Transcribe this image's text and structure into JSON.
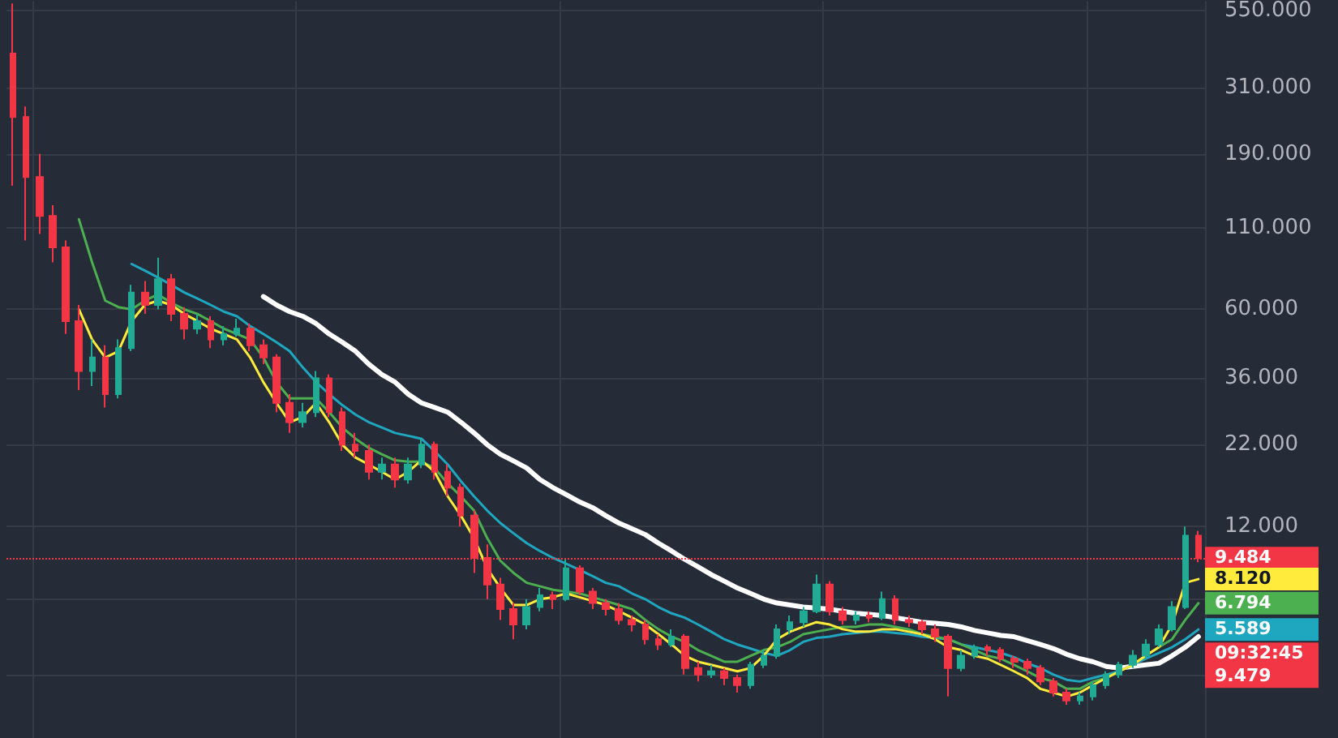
{
  "chart_data": {
    "type": "candlestick",
    "log": true,
    "grid": true,
    "tick_labels": "y",
    "ylim": [
      2.5,
      590
    ],
    "yticks": [
      {
        "value": 4,
        "label": null
      },
      {
        "value": 7,
        "label": null
      },
      {
        "value": 12,
        "label": "12.000"
      },
      {
        "value": 22,
        "label": "22.000"
      },
      {
        "value": 36,
        "label": "36.000"
      },
      {
        "value": 60,
        "label": "60.000"
      },
      {
        "value": 110,
        "label": "110.000"
      },
      {
        "value": 190,
        "label": "190.000"
      },
      {
        "value": 310,
        "label": "310.000"
      },
      {
        "value": 550,
        "label": "550.000"
      }
    ],
    "categories": [
      null,
      null,
      null,
      null,
      null,
      null,
      null,
      null,
      null,
      null,
      null,
      null,
      null,
      null,
      null,
      null,
      null,
      null,
      null,
      null,
      null,
      null,
      null,
      null,
      null,
      null,
      null,
      null,
      null,
      null,
      null,
      null,
      null,
      null,
      null,
      null,
      null,
      null,
      null,
      null,
      null,
      null,
      null,
      null,
      null,
      null,
      null,
      null,
      null,
      null,
      null,
      null,
      null,
      null,
      null,
      null,
      null,
      null,
      null,
      null,
      null,
      null,
      null,
      null,
      null,
      null,
      null,
      null,
      null,
      null,
      null,
      null,
      null,
      null,
      null,
      null,
      null,
      null,
      null,
      null,
      null,
      null,
      null,
      null,
      null,
      null,
      null,
      null,
      null,
      null,
      null
    ],
    "ohlc": [
      [
        400,
        580,
        150,
        250
      ],
      [
        250,
        270,
        100,
        160
      ],
      [
        160,
        190,
        105,
        120
      ],
      [
        120,
        130,
        85,
        95
      ],
      [
        95,
        100,
        50,
        55
      ],
      [
        55,
        62,
        33,
        38
      ],
      [
        38,
        48,
        34,
        42
      ],
      [
        42,
        46,
        29,
        32
      ],
      [
        32,
        48,
        31,
        45
      ],
      [
        45,
        72,
        44,
        68
      ],
      [
        68,
        74,
        58,
        62
      ],
      [
        62,
        88,
        60,
        75
      ],
      [
        75,
        78,
        55,
        58
      ],
      [
        58,
        61,
        48,
        52
      ],
      [
        52,
        58,
        50,
        55
      ],
      [
        55,
        57,
        45,
        48
      ],
      [
        48,
        53,
        46,
        50
      ],
      [
        50,
        56,
        49,
        52
      ],
      [
        52,
        54,
        44,
        46
      ],
      [
        46,
        48,
        40,
        42
      ],
      [
        42,
        43,
        28,
        30
      ],
      [
        30,
        32,
        24,
        26
      ],
      [
        26,
        30,
        25,
        28
      ],
      [
        28,
        38,
        27,
        36
      ],
      [
        36,
        37,
        27,
        28
      ],
      [
        28,
        29,
        21,
        22
      ],
      [
        22,
        24,
        20,
        21
      ],
      [
        21,
        22,
        17,
        18
      ],
      [
        18,
        20,
        17,
        19
      ],
      [
        19,
        20,
        16,
        17
      ],
      [
        17,
        20,
        16.5,
        19
      ],
      [
        19,
        23,
        18.5,
        22
      ],
      [
        22,
        22.5,
        17,
        18
      ],
      [
        18,
        19,
        15,
        16
      ],
      [
        16,
        16.5,
        12,
        13
      ],
      [
        13,
        13.5,
        8.5,
        9.5
      ],
      [
        9.5,
        10.5,
        7,
        7.8
      ],
      [
        7.8,
        8.2,
        6,
        6.5
      ],
      [
        6.5,
        6.8,
        5.2,
        5.8
      ],
      [
        5.8,
        7,
        5.6,
        6.6
      ],
      [
        6.6,
        7.6,
        6.4,
        7.2
      ],
      [
        7.2,
        7.4,
        6.5,
        7
      ],
      [
        7,
        9.4,
        6.9,
        8.8
      ],
      [
        8.8,
        9,
        7.2,
        7.4
      ],
      [
        7.4,
        7.6,
        6.5,
        6.8
      ],
      [
        6.8,
        7,
        6.2,
        6.5
      ],
      [
        6.5,
        6.8,
        5.8,
        6
      ],
      [
        6,
        6.2,
        5.5,
        5.8
      ],
      [
        5.8,
        6,
        5,
        5.2
      ],
      [
        5.2,
        5.4,
        4.8,
        5
      ],
      [
        5,
        5.6,
        4.9,
        5.3
      ],
      [
        5.3,
        5.4,
        4,
        4.2
      ],
      [
        4.2,
        4.4,
        3.8,
        4
      ],
      [
        4,
        4.3,
        3.9,
        4.1
      ],
      [
        4.1,
        4.2,
        3.7,
        3.9
      ],
      [
        3.9,
        4,
        3.5,
        3.7
      ],
      [
        3.7,
        4.4,
        3.6,
        4.3
      ],
      [
        4.3,
        4.8,
        4.2,
        4.6
      ],
      [
        4.6,
        5.8,
        4.5,
        5.6
      ],
      [
        5.6,
        6.2,
        5.4,
        5.9
      ],
      [
        5.9,
        6.6,
        5.7,
        6.4
      ],
      [
        6.4,
        8.4,
        6.3,
        7.8
      ],
      [
        7.8,
        8,
        6.2,
        6.4
      ],
      [
        6.4,
        6.6,
        5.8,
        6
      ],
      [
        6,
        6.4,
        5.8,
        6.2
      ],
      [
        6.2,
        6.4,
        5.9,
        6.1
      ],
      [
        6.1,
        7.4,
        6,
        7
      ],
      [
        7,
        7.2,
        5.8,
        6
      ],
      [
        6,
        6.2,
        5.7,
        5.9
      ],
      [
        5.9,
        6,
        5.4,
        5.6
      ],
      [
        5.6,
        5.8,
        5.1,
        5.3
      ],
      [
        5.3,
        5.4,
        3.4,
        4.2
      ],
      [
        4.2,
        4.8,
        4.1,
        4.6
      ],
      [
        4.6,
        5,
        4.5,
        4.9
      ],
      [
        4.9,
        5,
        4.6,
        4.8
      ],
      [
        4.8,
        4.9,
        4.4,
        4.5
      ],
      [
        4.5,
        4.6,
        4.2,
        4.4
      ],
      [
        4.4,
        4.5,
        4,
        4.2
      ],
      [
        4.2,
        4.3,
        3.7,
        3.8
      ],
      [
        3.8,
        3.9,
        3.4,
        3.5
      ],
      [
        3.5,
        3.6,
        3.2,
        3.3
      ],
      [
        3.3,
        3.5,
        3.2,
        3.4
      ],
      [
        3.4,
        3.8,
        3.3,
        3.7
      ],
      [
        3.7,
        4.1,
        3.6,
        4
      ],
      [
        4,
        4.4,
        3.9,
        4.3
      ],
      [
        4.3,
        4.8,
        4.2,
        4.6
      ],
      [
        4.6,
        5.2,
        4.5,
        5
      ],
      [
        5,
        5.8,
        4.9,
        5.6
      ],
      [
        5.6,
        6.9,
        5.5,
        6.6
      ],
      [
        6.6,
        12,
        6.5,
        11.2
      ],
      [
        11.2,
        11.6,
        9.2,
        9.484
      ]
    ],
    "colors": [
      "#f23645",
      "#f23645",
      "#f23645",
      "#f23645",
      "#f23645",
      "#f23645",
      "#22ab94",
      "#f23645",
      "#22ab94",
      "#22ab94",
      "#f23645",
      "#22ab94",
      "#f23645",
      "#f23645",
      "#22ab94",
      "#f23645",
      "#22ab94",
      "#22ab94",
      "#f23645",
      "#f23645",
      "#f23645",
      "#f23645",
      "#22ab94",
      "#22ab94",
      "#f23645",
      "#f23645",
      "#f23645",
      "#f23645",
      "#22ab94",
      "#f23645",
      "#22ab94",
      "#22ab94",
      "#f23645",
      "#f23645",
      "#f23645",
      "#f23645",
      "#f23645",
      "#f23645",
      "#f23645",
      "#22ab94",
      "#22ab94",
      "#f23645",
      "#22ab94",
      "#f23645",
      "#f23645",
      "#f23645",
      "#f23645",
      "#f23645",
      "#f23645",
      "#f23645",
      "#22ab94",
      "#f23645",
      "#f23645",
      "#22ab94",
      "#f23645",
      "#f23645",
      "#22ab94",
      "#22ab94",
      "#22ab94",
      "#22ab94",
      "#22ab94",
      "#22ab94",
      "#f23645",
      "#f23645",
      "#22ab94",
      "#f23645",
      "#22ab94",
      "#f23645",
      "#f23645",
      "#f23645",
      "#f23645",
      "#f23645",
      "#22ab94",
      "#22ab94",
      "#f23645",
      "#f23645",
      "#f23645",
      "#f23645",
      "#f23645",
      "#f23645",
      "#f23645",
      "#22ab94",
      "#22ab94",
      "#22ab94",
      "#22ab94",
      "#22ab94",
      "#22ab94",
      "#22ab94",
      "#22ab94",
      "#22ab94",
      "#f23645"
    ],
    "series": [
      {
        "type": "line",
        "color": "#ffffff",
        "values": [
          null,
          null,
          null,
          null,
          null,
          null,
          null,
          null,
          null,
          null,
          null,
          null,
          null,
          null,
          null,
          null,
          null,
          null,
          null,
          66,
          62,
          59,
          57,
          54,
          50,
          47,
          44,
          40,
          37,
          35,
          32,
          30,
          29,
          28,
          26,
          24,
          22,
          20.5,
          19.5,
          18.5,
          17,
          16,
          15.2,
          14.4,
          13.8,
          13,
          12.3,
          11.8,
          11.3,
          10.6,
          10,
          9.4,
          8.9,
          8.4,
          8,
          7.6,
          7.3,
          7,
          6.8,
          6.7,
          6.6,
          6.55,
          6.5,
          6.4,
          6.3,
          6.25,
          6.2,
          6.1,
          6,
          5.9,
          5.85,
          5.8,
          5.7,
          5.55,
          5.45,
          5.35,
          5.3,
          5.15,
          5,
          4.85,
          4.65,
          4.5,
          4.4,
          4.25,
          4.2,
          4.25,
          4.3,
          4.35,
          4.6,
          4.9,
          5.3
        ]
      },
      {
        "type": "line",
        "color": "#1fa7c0",
        "values": [
          null,
          null,
          null,
          null,
          null,
          null,
          null,
          null,
          null,
          84,
          80,
          76,
          72,
          68,
          65,
          62,
          59,
          57,
          53,
          50,
          47,
          44,
          39,
          35,
          32,
          29.5,
          27.5,
          26,
          25,
          24,
          23.5,
          23,
          21,
          19,
          16.8,
          15,
          13.5,
          12.3,
          11.4,
          10.6,
          10,
          9.5,
          9.1,
          8.7,
          8.3,
          7.9,
          7.7,
          7.3,
          7,
          6.6,
          6.3,
          6.1,
          5.8,
          5.5,
          5.2,
          5,
          4.85,
          4.7,
          4.6,
          4.8,
          5.1,
          5.25,
          5.3,
          5.4,
          5.45,
          5.5,
          5.5,
          5.45,
          5.4,
          5.3,
          5.25,
          5.2,
          5,
          4.9,
          4.8,
          4.7,
          4.55,
          4.35,
          4.2,
          4,
          3.85,
          3.8,
          3.9,
          4,
          4.1,
          4.3,
          4.5,
          4.7,
          4.9,
          5.2,
          5.589
        ],
        "value_labels": [
          null,
          null,
          null,
          null,
          null,
          null,
          null,
          null,
          null,
          null,
          null,
          null,
          null,
          null,
          null,
          null,
          null,
          null,
          null,
          null,
          null,
          null,
          null,
          null,
          null,
          null,
          null,
          null,
          null,
          null,
          null,
          null,
          null,
          null,
          null,
          null,
          null,
          null,
          null,
          null,
          null,
          null,
          null,
          null,
          null,
          null,
          null,
          null,
          null,
          null,
          null,
          null,
          null,
          null,
          null,
          null,
          null,
          null,
          null,
          null,
          null,
          null,
          null,
          null,
          null,
          null,
          null,
          null,
          null,
          null,
          null,
          null,
          null,
          null,
          null,
          null,
          null,
          null,
          null,
          null,
          null,
          null,
          null,
          null,
          null,
          null,
          null,
          null,
          null,
          null,
          "5.589"
        ]
      },
      {
        "type": "line",
        "color": "#4caf50",
        "values": [
          null,
          null,
          null,
          null,
          null,
          117,
          85,
          64,
          61,
          60,
          64,
          67,
          63,
          60,
          58,
          55,
          52,
          50,
          48,
          42,
          35,
          31,
          31,
          31,
          28,
          25,
          23,
          21.5,
          20.5,
          19.6,
          19.4,
          19.4,
          18.5,
          16.5,
          15,
          13.5,
          11,
          9.3,
          8.5,
          7.9,
          7.7,
          7.5,
          7.4,
          7.3,
          7.1,
          6.9,
          6.7,
          6.5,
          6,
          5.6,
          5.3,
          5.1,
          4.8,
          4.6,
          4.4,
          4.4,
          4.6,
          4.8,
          4.9,
          5.1,
          5.4,
          5.5,
          5.6,
          5.7,
          5.7,
          5.8,
          5.8,
          5.7,
          5.6,
          5.4,
          5.3,
          5.2,
          5,
          4.8,
          4.6,
          4.5,
          4.3,
          4.1,
          3.9,
          3.8,
          3.6,
          3.6,
          3.8,
          3.9,
          4.1,
          4.3,
          4.6,
          4.9,
          5.2,
          6,
          6.794
        ],
        "value_labels": [
          null,
          null,
          null,
          null,
          null,
          null,
          null,
          null,
          null,
          null,
          null,
          null,
          null,
          null,
          null,
          null,
          null,
          null,
          null,
          null,
          null,
          null,
          null,
          null,
          null,
          null,
          null,
          null,
          null,
          null,
          null,
          null,
          null,
          null,
          null,
          null,
          null,
          null,
          null,
          null,
          null,
          null,
          null,
          null,
          null,
          null,
          null,
          null,
          null,
          null,
          null,
          null,
          null,
          null,
          null,
          null,
          null,
          null,
          null,
          null,
          null,
          null,
          null,
          null,
          null,
          null,
          null,
          null,
          null,
          null,
          null,
          null,
          null,
          null,
          null,
          null,
          null,
          null,
          null,
          null,
          null,
          null,
          null,
          null,
          null,
          null,
          null,
          null,
          null,
          null,
          "6.794"
        ]
      },
      {
        "type": "line",
        "color": "#ffeb3b",
        "values": [
          null,
          null,
          null,
          null,
          null,
          60,
          48,
          42,
          44,
          55,
          62,
          64,
          62,
          58,
          55,
          52,
          50,
          48,
          42,
          35,
          30,
          26,
          27,
          30,
          26,
          22,
          20,
          19,
          18,
          17,
          18,
          19.6,
          18,
          15,
          13,
          11,
          8.8,
          7.6,
          6.7,
          6.7,
          7,
          7.1,
          7.3,
          7.1,
          6.9,
          6.7,
          6.4,
          6.1,
          5.8,
          5.4,
          5,
          4.6,
          4.4,
          4.3,
          4.2,
          4.1,
          4.2,
          4.6,
          5.2,
          5.5,
          5.7,
          5.9,
          5.8,
          5.6,
          5.5,
          5.5,
          5.6,
          5.6,
          5.5,
          5.4,
          5.2,
          4.9,
          4.8,
          4.6,
          4.5,
          4.3,
          4.1,
          3.9,
          3.6,
          3.5,
          3.4,
          3.5,
          3.7,
          3.9,
          4.1,
          4.3,
          4.6,
          4.9,
          5.8,
          7.9,
          8.12
        ],
        "value_labels": [
          null,
          null,
          null,
          null,
          null,
          null,
          null,
          null,
          null,
          null,
          null,
          null,
          null,
          null,
          null,
          null,
          null,
          null,
          null,
          null,
          null,
          null,
          null,
          null,
          null,
          null,
          null,
          null,
          null,
          null,
          null,
          null,
          null,
          null,
          null,
          null,
          null,
          null,
          null,
          null,
          null,
          null,
          null,
          null,
          null,
          null,
          null,
          null,
          null,
          null,
          null,
          null,
          null,
          null,
          null,
          null,
          null,
          null,
          null,
          null,
          null,
          null,
          null,
          null,
          null,
          null,
          null,
          null,
          null,
          null,
          null,
          null,
          null,
          null,
          null,
          null,
          null,
          null,
          null,
          null,
          null,
          null,
          null,
          null,
          null,
          null,
          null,
          null,
          null,
          null,
          "8.120"
        ]
      }
    ],
    "ref_lines": [
      {
        "axis": "y",
        "value": 9.484,
        "label": "9.484",
        "color": "#f23645",
        "line_style": "dotted"
      }
    ],
    "annotations": [
      "09:32:45",
      "9.479"
    ]
  }
}
